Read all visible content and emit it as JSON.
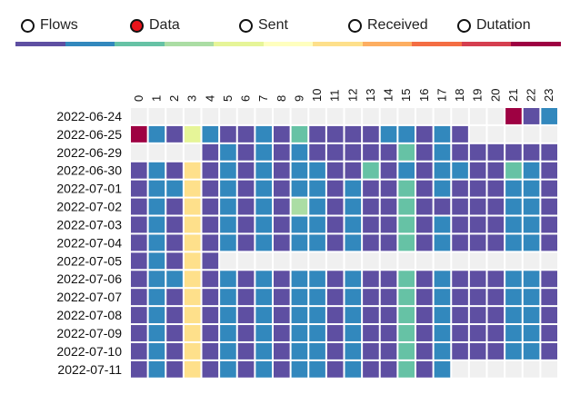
{
  "metric_selector": {
    "options": [
      {
        "label": "Flows",
        "selected": false
      },
      {
        "label": "Data",
        "selected": true
      },
      {
        "label": "Sent",
        "selected": false
      },
      {
        "label": "Received",
        "selected": false
      },
      {
        "label": "Dutation",
        "selected": false
      }
    ]
  },
  "color_scale": [
    "#5e4fa2",
    "#3288bd",
    "#66c2a5",
    "#abdda4",
    "#e6f598",
    "#ffffbf",
    "#fee08b",
    "#fdae61",
    "#f46d43",
    "#d53e4f",
    "#9e0142"
  ],
  "empty_color": "#f0f0f0",
  "chart_data": {
    "type": "heatmap",
    "x": [
      "0",
      "1",
      "2",
      "3",
      "4",
      "5",
      "6",
      "7",
      "8",
      "9",
      "10",
      "11",
      "12",
      "13",
      "14",
      "15",
      "16",
      "17",
      "18",
      "19",
      "20",
      "21",
      "22",
      "23"
    ],
    "y": [
      "2022-06-24",
      "2022-06-25",
      "2022-06-29",
      "2022-06-30",
      "2022-07-01",
      "2022-07-02",
      "2022-07-03",
      "2022-07-04",
      "2022-07-05",
      "2022-07-06",
      "2022-07-07",
      "2022-07-08",
      "2022-07-09",
      "2022-07-10",
      "2022-07-11"
    ],
    "values": [
      [
        null,
        null,
        null,
        null,
        null,
        null,
        null,
        null,
        null,
        null,
        null,
        null,
        null,
        null,
        null,
        null,
        null,
        null,
        null,
        null,
        null,
        10,
        0,
        1
      ],
      [
        10,
        1,
        0,
        4,
        1,
        0,
        0,
        1,
        0,
        2,
        0,
        0,
        0,
        0,
        1,
        1,
        0,
        1,
        0,
        null,
        null,
        null,
        null,
        null
      ],
      [
        null,
        null,
        null,
        null,
        0,
        1,
        0,
        1,
        0,
        1,
        0,
        0,
        0,
        0,
        0,
        2,
        0,
        1,
        0,
        0,
        0,
        0,
        0,
        0
      ],
      [
        0,
        1,
        0,
        6,
        0,
        1,
        0,
        1,
        0,
        1,
        1,
        0,
        0,
        2,
        0,
        1,
        0,
        1,
        1,
        0,
        0,
        2,
        1,
        0
      ],
      [
        0,
        1,
        1,
        6,
        0,
        1,
        0,
        1,
        0,
        1,
        1,
        0,
        1,
        0,
        0,
        2,
        0,
        1,
        0,
        0,
        0,
        1,
        1,
        0
      ],
      [
        0,
        1,
        0,
        6,
        0,
        1,
        0,
        1,
        0,
        3,
        1,
        0,
        1,
        0,
        0,
        2,
        0,
        0,
        0,
        0,
        0,
        1,
        1,
        0
      ],
      [
        0,
        1,
        0,
        6,
        0,
        1,
        0,
        1,
        0,
        1,
        1,
        0,
        1,
        0,
        0,
        2,
        0,
        1,
        0,
        0,
        0,
        1,
        1,
        0
      ],
      [
        0,
        1,
        0,
        6,
        0,
        1,
        0,
        1,
        0,
        1,
        1,
        0,
        1,
        0,
        0,
        2,
        0,
        1,
        0,
        0,
        0,
        1,
        1,
        0
      ],
      [
        0,
        1,
        0,
        6,
        0,
        null,
        null,
        null,
        null,
        null,
        null,
        null,
        null,
        null,
        null,
        null,
        null,
        null,
        null,
        null,
        null,
        null,
        null,
        null
      ],
      [
        0,
        1,
        1,
        6,
        0,
        1,
        0,
        1,
        0,
        1,
        1,
        0,
        1,
        0,
        0,
        2,
        0,
        1,
        0,
        0,
        0,
        1,
        1,
        0
      ],
      [
        0,
        1,
        0,
        6,
        0,
        1,
        0,
        1,
        0,
        1,
        1,
        0,
        1,
        0,
        0,
        2,
        0,
        1,
        0,
        0,
        0,
        1,
        1,
        0
      ],
      [
        0,
        1,
        0,
        6,
        0,
        1,
        0,
        1,
        0,
        1,
        1,
        0,
        1,
        0,
        0,
        2,
        0,
        1,
        0,
        0,
        0,
        1,
        1,
        0
      ],
      [
        0,
        1,
        0,
        6,
        0,
        1,
        0,
        1,
        0,
        1,
        1,
        0,
        1,
        0,
        0,
        2,
        0,
        1,
        0,
        0,
        0,
        1,
        1,
        0
      ],
      [
        0,
        1,
        0,
        6,
        0,
        1,
        0,
        1,
        0,
        1,
        1,
        0,
        1,
        0,
        0,
        2,
        0,
        1,
        0,
        0,
        0,
        1,
        1,
        0
      ],
      [
        0,
        1,
        0,
        6,
        0,
        1,
        0,
        1,
        0,
        1,
        1,
        0,
        1,
        0,
        0,
        2,
        0,
        1,
        null,
        null,
        null,
        null,
        null,
        null
      ]
    ]
  }
}
